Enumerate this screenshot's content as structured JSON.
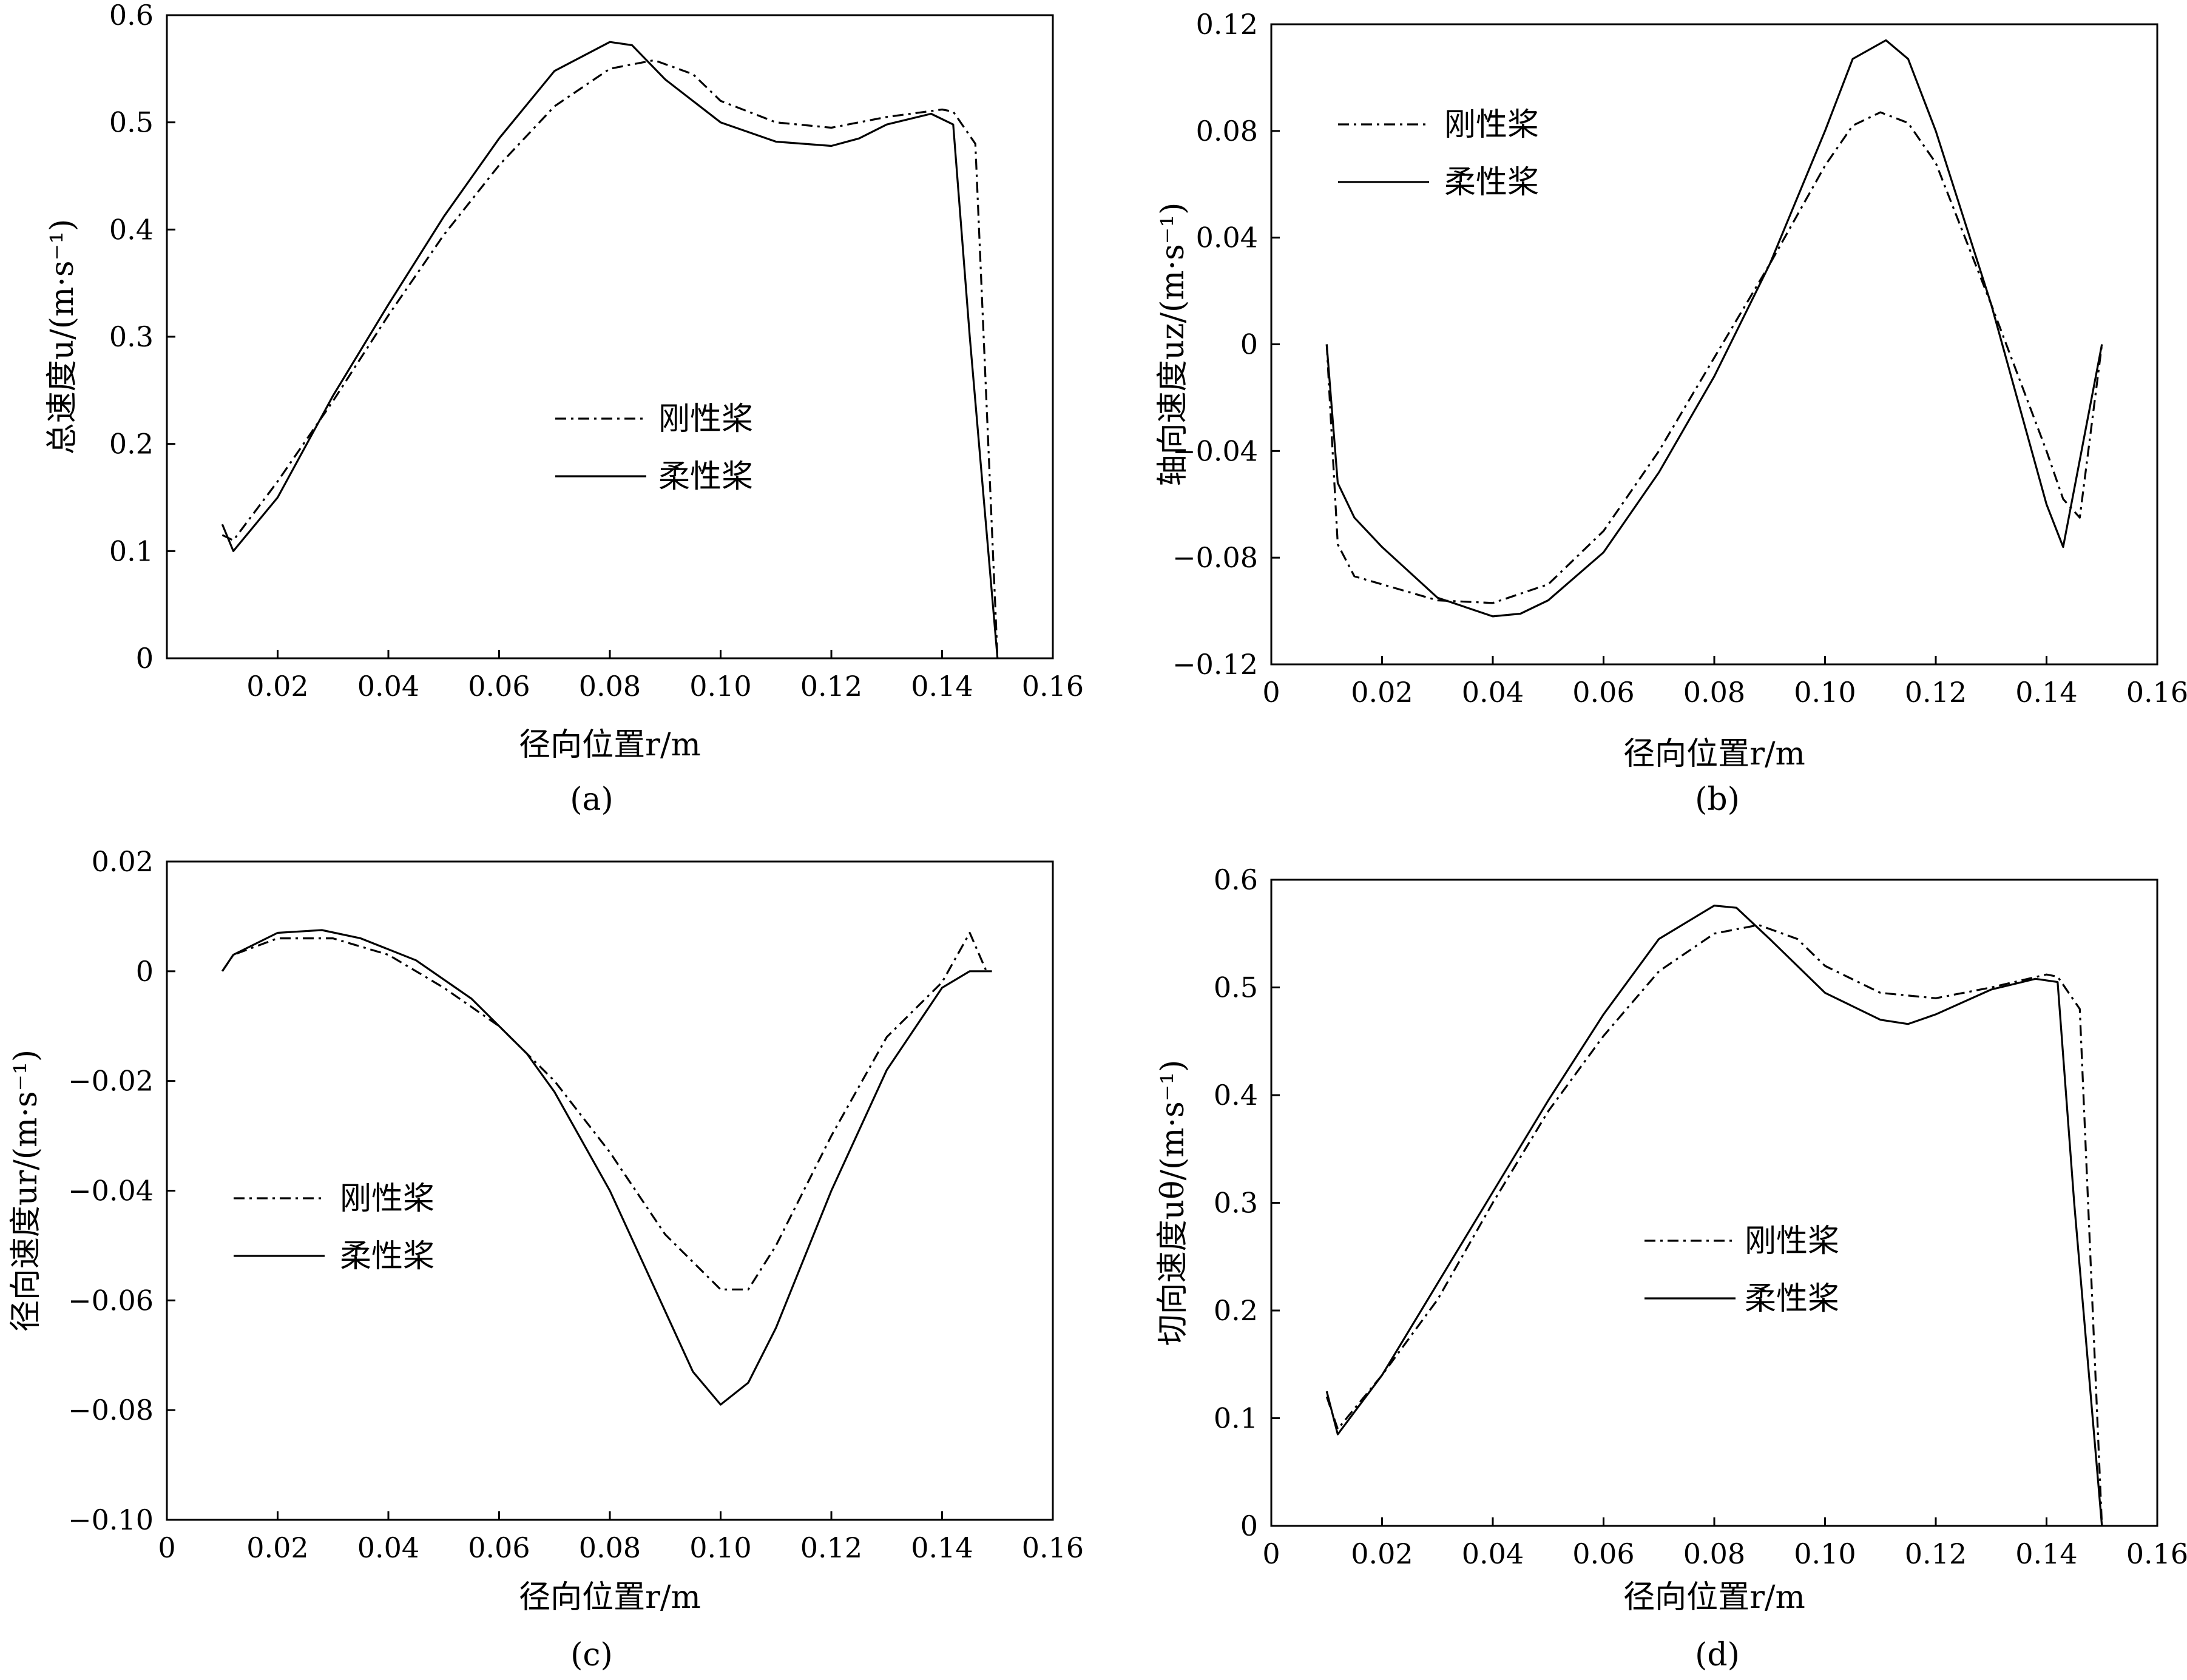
{
  "figure": {
    "panels": [
      "a",
      "b",
      "c",
      "d"
    ]
  },
  "chart_data": [
    {
      "id": "a",
      "type": "line",
      "caption": "(a)",
      "xlabel": "径向位置r/m",
      "ylabel": "总速度u/(m·s⁻¹)",
      "xlim": [
        0,
        0.16
      ],
      "ylim": [
        0,
        0.6
      ],
      "xticks": [
        0.02,
        0.04,
        0.06,
        0.08,
        0.1,
        0.12,
        0.14,
        0.16
      ],
      "xtick_labels": [
        "0.02",
        "0.04",
        "0.06",
        "0.08",
        "0.10",
        "0.12",
        "0.14",
        "0.16"
      ],
      "yticks": [
        0,
        0.1,
        0.2,
        0.3,
        0.4,
        0.5,
        0.6
      ],
      "ytick_labels": [
        "0",
        "0.1",
        "0.2",
        "0.3",
        "0.4",
        "0.5",
        "0.6"
      ],
      "origin_label": "0",
      "legend": {
        "position": "center-right",
        "entries": [
          "刚性桨",
          "柔性桨"
        ]
      },
      "series": [
        {
          "name": "刚性桨",
          "style": "dashdot",
          "x": [
            0.01,
            0.012,
            0.02,
            0.03,
            0.04,
            0.05,
            0.06,
            0.07,
            0.08,
            0.088,
            0.095,
            0.1,
            0.11,
            0.12,
            0.13,
            0.14,
            0.142,
            0.146,
            0.15
          ],
          "y": [
            0.115,
            0.11,
            0.165,
            0.24,
            0.32,
            0.395,
            0.46,
            0.515,
            0.55,
            0.558,
            0.545,
            0.52,
            0.5,
            0.495,
            0.505,
            0.512,
            0.51,
            0.48,
            0.0
          ]
        },
        {
          "name": "柔性桨",
          "style": "solid",
          "x": [
            0.01,
            0.012,
            0.02,
            0.03,
            0.04,
            0.05,
            0.06,
            0.07,
            0.08,
            0.084,
            0.09,
            0.1,
            0.11,
            0.12,
            0.125,
            0.13,
            0.138,
            0.142,
            0.145,
            0.15
          ],
          "y": [
            0.125,
            0.1,
            0.15,
            0.245,
            0.33,
            0.412,
            0.485,
            0.548,
            0.575,
            0.572,
            0.54,
            0.5,
            0.482,
            0.478,
            0.485,
            0.498,
            0.508,
            0.498,
            0.3,
            0.0
          ]
        }
      ]
    },
    {
      "id": "b",
      "type": "line",
      "caption": "(b)",
      "xlabel": "径向位置r/m",
      "ylabel": "轴向速度uz/(m·s⁻¹)",
      "xlim": [
        0,
        0.16
      ],
      "ylim": [
        -0.12,
        0.12
      ],
      "xticks": [
        0,
        0.02,
        0.04,
        0.06,
        0.08,
        0.1,
        0.12,
        0.14,
        0.16
      ],
      "xtick_labels": [
        "0",
        "0.02",
        "0.04",
        "0.06",
        "0.08",
        "0.10",
        "0.12",
        "0.14",
        "0.16"
      ],
      "yticks": [
        -0.12,
        -0.08,
        -0.04,
        0,
        0.04,
        0.08,
        0.12
      ],
      "ytick_labels": [
        "−0.12",
        "−0.08",
        "−0.04",
        "0",
        "0.04",
        "0.08",
        "0.12"
      ],
      "legend": {
        "position": "top-left",
        "entries": [
          "刚性桨",
          "柔性桨"
        ]
      },
      "series": [
        {
          "name": "刚性桨",
          "style": "dashdot",
          "x": [
            0.01,
            0.012,
            0.015,
            0.02,
            0.03,
            0.04,
            0.05,
            0.06,
            0.07,
            0.08,
            0.09,
            0.1,
            0.105,
            0.11,
            0.115,
            0.12,
            0.13,
            0.14,
            0.143,
            0.146,
            0.15
          ],
          "y": [
            0.0,
            -0.075,
            -0.087,
            -0.09,
            -0.096,
            -0.097,
            -0.09,
            -0.07,
            -0.04,
            -0.005,
            0.03,
            0.067,
            0.082,
            0.087,
            0.083,
            0.068,
            0.015,
            -0.04,
            -0.058,
            -0.065,
            0.0
          ]
        },
        {
          "name": "柔性桨",
          "style": "solid",
          "x": [
            0.01,
            0.012,
            0.015,
            0.02,
            0.03,
            0.04,
            0.045,
            0.05,
            0.06,
            0.07,
            0.08,
            0.09,
            0.1,
            0.105,
            0.111,
            0.115,
            0.12,
            0.13,
            0.14,
            0.143,
            0.15
          ],
          "y": [
            0.0,
            -0.052,
            -0.065,
            -0.076,
            -0.095,
            -0.102,
            -0.101,
            -0.096,
            -0.078,
            -0.048,
            -0.012,
            0.03,
            0.08,
            0.107,
            0.114,
            0.107,
            0.08,
            0.015,
            -0.06,
            -0.076,
            0.0
          ]
        }
      ]
    },
    {
      "id": "c",
      "type": "line",
      "caption": "(c)",
      "xlabel": "径向位置r/m",
      "ylabel": "径向速度ur/(m·s⁻¹)",
      "xlim": [
        0,
        0.16
      ],
      "ylim": [
        -0.1,
        0.02
      ],
      "xticks": [
        0,
        0.02,
        0.04,
        0.06,
        0.08,
        0.1,
        0.12,
        0.14,
        0.16
      ],
      "xtick_labels": [
        "0",
        "0.02",
        "0.04",
        "0.06",
        "0.08",
        "0.10",
        "0.12",
        "0.14",
        "0.16"
      ],
      "yticks": [
        -0.1,
        -0.08,
        -0.06,
        -0.04,
        -0.02,
        0,
        0.02
      ],
      "ytick_labels": [
        "−0.10",
        "−0.08",
        "−0.06",
        "−0.04",
        "−0.02",
        "0",
        "0.02"
      ],
      "legend": {
        "position": "center-left",
        "entries": [
          "刚性桨",
          "柔性桨"
        ]
      },
      "series": [
        {
          "name": "刚性桨",
          "style": "dashdot",
          "x": [
            0.01,
            0.012,
            0.02,
            0.03,
            0.04,
            0.05,
            0.06,
            0.07,
            0.08,
            0.09,
            0.1,
            0.105,
            0.11,
            0.12,
            0.13,
            0.14,
            0.145,
            0.148
          ],
          "y": [
            0.0,
            0.003,
            0.006,
            0.006,
            0.003,
            -0.003,
            -0.01,
            -0.02,
            -0.033,
            -0.048,
            -0.058,
            -0.058,
            -0.05,
            -0.03,
            -0.012,
            -0.002,
            0.007,
            0.0
          ]
        },
        {
          "name": "柔性桨",
          "style": "solid",
          "x": [
            0.01,
            0.012,
            0.02,
            0.028,
            0.035,
            0.045,
            0.055,
            0.065,
            0.07,
            0.08,
            0.09,
            0.095,
            0.1,
            0.105,
            0.11,
            0.12,
            0.13,
            0.14,
            0.145,
            0.149
          ],
          "y": [
            0.0,
            0.003,
            0.007,
            0.0075,
            0.006,
            0.002,
            -0.005,
            -0.015,
            -0.022,
            -0.04,
            -0.062,
            -0.073,
            -0.079,
            -0.075,
            -0.065,
            -0.04,
            -0.018,
            -0.003,
            0.0,
            0.0
          ]
        }
      ]
    },
    {
      "id": "d",
      "type": "line",
      "caption": "(d)",
      "xlabel": "径向位置r/m",
      "ylabel": "切向速度uθ/(m·s⁻¹)",
      "xlim": [
        0,
        0.16
      ],
      "ylim": [
        0,
        0.6
      ],
      "xticks": [
        0,
        0.02,
        0.04,
        0.06,
        0.08,
        0.1,
        0.12,
        0.14,
        0.16
      ],
      "xtick_labels": [
        "0",
        "0.02",
        "0.04",
        "0.06",
        "0.08",
        "0.10",
        "0.12",
        "0.14",
        "0.16"
      ],
      "yticks": [
        0,
        0.1,
        0.2,
        0.3,
        0.4,
        0.5,
        0.6
      ],
      "ytick_labels": [
        "0",
        "0.1",
        "0.2",
        "0.3",
        "0.4",
        "0.5",
        "0.6"
      ],
      "legend": {
        "position": "center",
        "entries": [
          "刚性桨",
          "柔性桨"
        ]
      },
      "series": [
        {
          "name": "刚性桨",
          "style": "dashdot",
          "x": [
            0.01,
            0.012,
            0.02,
            0.03,
            0.04,
            0.05,
            0.06,
            0.07,
            0.08,
            0.088,
            0.095,
            0.1,
            0.11,
            0.12,
            0.13,
            0.14,
            0.142,
            0.146,
            0.15
          ],
          "y": [
            0.12,
            0.09,
            0.14,
            0.21,
            0.3,
            0.385,
            0.455,
            0.515,
            0.55,
            0.558,
            0.545,
            0.52,
            0.495,
            0.49,
            0.5,
            0.512,
            0.51,
            0.48,
            0.0
          ]
        },
        {
          "name": "柔性桨",
          "style": "solid",
          "x": [
            0.01,
            0.012,
            0.02,
            0.03,
            0.04,
            0.05,
            0.06,
            0.07,
            0.08,
            0.084,
            0.09,
            0.1,
            0.11,
            0.115,
            0.12,
            0.13,
            0.138,
            0.142,
            0.145,
            0.15
          ],
          "y": [
            0.125,
            0.085,
            0.14,
            0.225,
            0.31,
            0.395,
            0.475,
            0.545,
            0.576,
            0.574,
            0.545,
            0.495,
            0.47,
            0.466,
            0.475,
            0.498,
            0.508,
            0.505,
            0.3,
            0.0
          ]
        }
      ]
    }
  ]
}
